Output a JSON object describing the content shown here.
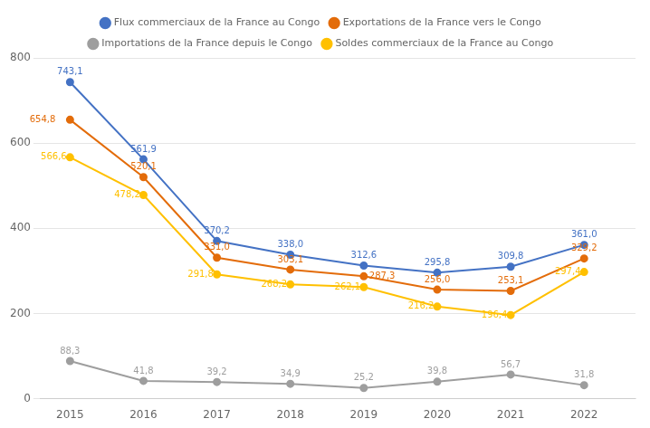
{
  "chart_data": {
    "type": "line",
    "x": [
      2015,
      2016,
      2017,
      2018,
      2019,
      2020,
      2021,
      2022
    ],
    "series": [
      {
        "name": "Flux commerciaux de la France au Congo",
        "color": "#4472C4",
        "values": [
          743.1,
          561.9,
          370.2,
          338.0,
          312.6,
          295.8,
          309.8,
          361.0
        ],
        "value_labels": [
          "743,1",
          "561,9",
          "370,2",
          "338,0",
          "312,6",
          "295,8",
          "309,8",
          "361,0"
        ]
      },
      {
        "name": "Exportations de la France vers le Congo",
        "color": "#E36C0A",
        "values": [
          654.8,
          520.1,
          331.0,
          303.1,
          287.3,
          256.0,
          253.1,
          329.2
        ],
        "value_labels": [
          "654,8",
          "520,1",
          "331,0",
          "303,1",
          "287,3",
          "256,0",
          "253,1",
          "329,2"
        ]
      },
      {
        "name": "Importations de la France depuis le Congo",
        "color": "#9E9E9E",
        "values": [
          88.3,
          41.8,
          39.2,
          34.9,
          25.2,
          39.8,
          56.7,
          31.8
        ],
        "value_labels": [
          "88,3",
          "41,8",
          "39,2",
          "34,9",
          "25,2",
          "39,8",
          "56,7",
          "31,8"
        ]
      },
      {
        "name": "Soldes commerciaux de la France au Congo",
        "color": "#FFC000",
        "values": [
          566.6,
          478.2,
          291.8,
          268.2,
          262.1,
          216.2,
          196.4,
          297.4
        ],
        "value_labels": [
          "566,6",
          "478,2",
          "291,8",
          "268,2",
          "262,1",
          "216,2",
          "196,4",
          "297,4"
        ]
      }
    ],
    "xlim": [
      2014.6,
      2022.7
    ],
    "xticks": [
      2015,
      2016,
      2017,
      2018,
      2019,
      2020,
      2021,
      2022
    ],
    "ylim": [
      0,
      800
    ],
    "yticks": [
      0,
      200,
      400,
      600,
      800
    ],
    "grid": "y",
    "legend": "top",
    "data_labels": true,
    "marker": "circle"
  }
}
